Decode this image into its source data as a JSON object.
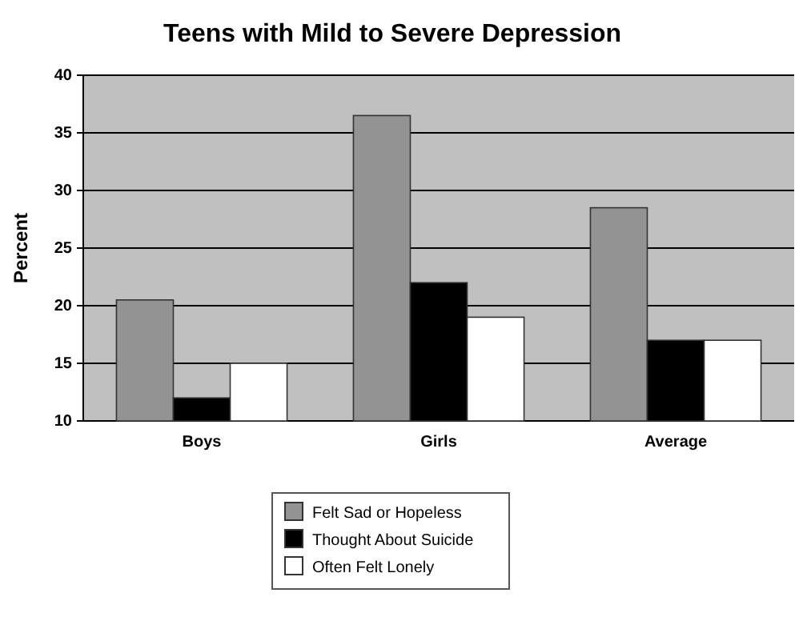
{
  "chart_data": {
    "type": "bar",
    "title": "Teens with Mild to Severe Depression",
    "ylabel": "Percent",
    "categories": [
      "Boys",
      "Girls",
      "Average"
    ],
    "series": [
      {
        "name": "Felt Sad or Hopeless",
        "color": "#939393",
        "values": [
          20.5,
          36.5,
          28.5
        ]
      },
      {
        "name": "Thought About Suicide",
        "color": "#000000",
        "values": [
          12,
          22,
          17
        ]
      },
      {
        "name": "Often Felt Lonely",
        "color": "#ffffff",
        "values": [
          15,
          19,
          17
        ]
      }
    ],
    "ylim": [
      10,
      40
    ],
    "yticks": [
      10,
      15,
      20,
      25,
      30,
      35,
      40
    ],
    "grid": "y",
    "legend": "bottom"
  }
}
